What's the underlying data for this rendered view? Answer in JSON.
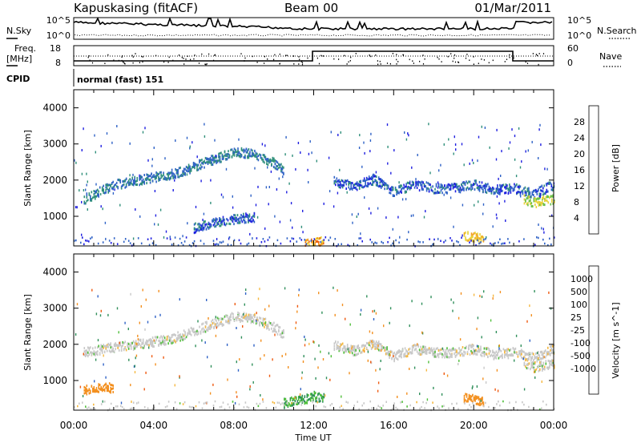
{
  "header": {
    "station": "Kapuskasing (fitACF)",
    "beam": "Beam 00",
    "date": "01/Mar/2011"
  },
  "panels": {
    "nsky": {
      "left_label": "N.Sky",
      "ticks_left": [
        "10^5",
        "10^0"
      ],
      "ticks_right": [
        "10^5",
        "10^0"
      ],
      "right_label": "N.Search"
    },
    "freq": {
      "left_label_1": "Freq.",
      "left_label_2": "[MHz]",
      "ticks_left": [
        "18",
        "8"
      ],
      "ticks_right": [
        "60",
        "0"
      ],
      "right_label": "Nave"
    },
    "cpid": {
      "label": "CPID",
      "mode": "normal (fast) 151"
    }
  },
  "colors": {
    "power": [
      "#1f1fe0",
      "#2f62c6",
      "#2f8f7a",
      "#6cc14a",
      "#e8d23a",
      "#f2a11f",
      "#ee6410",
      "#e01010"
    ],
    "velocity": [
      "#e01010",
      "#ef5a10",
      "#f39020",
      "#f5b840",
      "#c8c8c8",
      "#c8c8c8",
      "#4fbf3a",
      "#2f8f5a",
      "#2f62c6",
      "#1f1fe0"
    ]
  },
  "chart_data": [
    {
      "type": "heatmap",
      "title": "Power",
      "xlabel": "",
      "ylabel": "Slant Range [km]",
      "ylim": [
        180,
        4500
      ],
      "y_ticks": [
        "1000",
        "2000",
        "3000",
        "4000"
      ],
      "colorbar": {
        "label": "Power [dB]",
        "ticks": [
          "4",
          "8",
          "12",
          "16",
          "20",
          "24",
          "28"
        ]
      },
      "bands": [
        {
          "x": [
            0.5,
            2,
            3.5,
            5,
            6.5,
            8,
            9,
            10,
            10.5
          ],
          "y": [
            1500,
            1900,
            2050,
            2200,
            2500,
            2800,
            2750,
            2500,
            2300
          ],
          "value": 10
        },
        {
          "x": [
            13,
            14,
            15,
            16,
            17,
            18,
            19,
            20,
            21,
            22,
            23,
            24
          ],
          "y": [
            2000,
            1850,
            2050,
            1700,
            1900,
            1800,
            1800,
            1900,
            1750,
            1800,
            1650,
            1900
          ],
          "value": 8
        },
        {
          "x": [
            11.5,
            12,
            12.5
          ],
          "y": [
            250,
            300,
            350
          ],
          "value": 24
        },
        {
          "x": [
            19.5,
            20,
            20.5
          ],
          "y": [
            500,
            450,
            400
          ],
          "value": 22
        },
        {
          "x": [
            22.5,
            23,
            23.5,
            24
          ],
          "y": [
            1500,
            1400,
            1450,
            1500
          ],
          "value": 18
        },
        {
          "x": [
            6,
            7,
            8,
            9
          ],
          "y": [
            700,
            850,
            950,
            1000
          ],
          "value": 8
        }
      ]
    },
    {
      "type": "heatmap",
      "title": "Velocity",
      "xlabel": "Time UT",
      "ylabel": "Slant Range [km]",
      "xlim": [
        "00:00",
        "24:00"
      ],
      "ylim": [
        180,
        4500
      ],
      "x_ticks": [
        "00:00",
        "04:00",
        "08:00",
        "12:00",
        "16:00",
        "20:00",
        "00:00"
      ],
      "y_ticks": [
        "1000",
        "2000",
        "3000",
        "4000"
      ],
      "colorbar": {
        "label": "Velocity [m s^-1]",
        "ticks": [
          "1000",
          "500",
          "100",
          "25",
          "-25",
          "-100",
          "-500",
          "-1000"
        ]
      },
      "bands": [
        {
          "x": [
            0.5,
            2,
            3.5,
            5,
            6.5,
            8,
            9,
            10,
            10.5
          ],
          "y": [
            1800,
            1950,
            2050,
            2200,
            2500,
            2800,
            2750,
            2500,
            2300
          ],
          "value": 0
        },
        {
          "x": [
            13,
            14,
            15,
            16,
            17,
            18,
            19,
            20,
            21,
            22,
            23,
            24
          ],
          "y": [
            2000,
            1850,
            2050,
            1700,
            1900,
            1800,
            1800,
            1900,
            1750,
            1800,
            1650,
            1900
          ],
          "value": 0
        },
        {
          "x": [
            10.5,
            11,
            11.5,
            12,
            12.5
          ],
          "y": [
            400,
            450,
            500,
            600,
            550
          ],
          "value": 100
        },
        {
          "x": [
            19.5,
            20,
            20.5
          ],
          "y": [
            550,
            500,
            450
          ],
          "value": -300
        },
        {
          "x": [
            22.5,
            23,
            23.5,
            24
          ],
          "y": [
            1500,
            1400,
            1450,
            1500
          ],
          "value": 0
        },
        {
          "x": [
            0.5,
            1,
            1.5,
            2
          ],
          "y": [
            750,
            800,
            850,
            800
          ],
          "value": -300
        }
      ]
    }
  ]
}
